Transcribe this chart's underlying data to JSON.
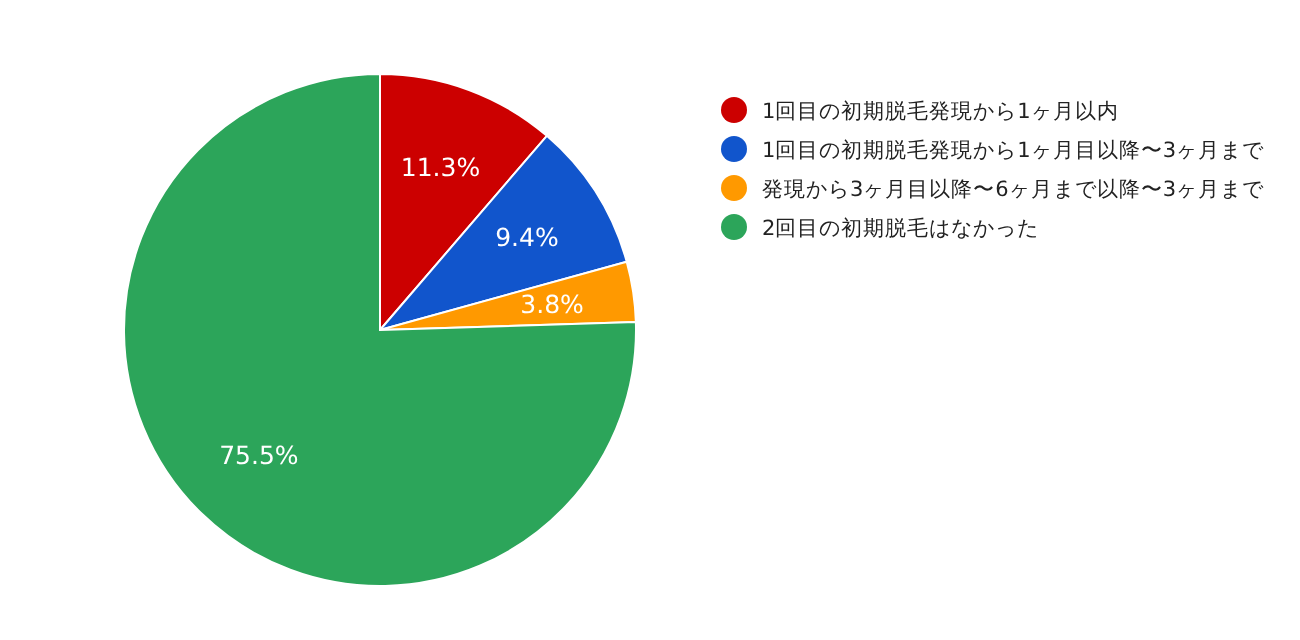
{
  "chart_data": {
    "type": "pie",
    "categories": [
      "1回目の初期脱毛発現から1ヶ月以内",
      "1回目の初期脱毛発現から1ヶ月目以降〜3ヶ月まで",
      "発現から3ヶ月目以降〜6ヶ月まで以降〜3ヶ月まで",
      "2回目の初期脱毛はなかった"
    ],
    "values": [
      11.3,
      9.4,
      3.8,
      75.5
    ],
    "colors": [
      "#cc0000",
      "#1155cc",
      "#ff9900",
      "#2ca55a"
    ],
    "value_labels": [
      "11.3%",
      "9.4%",
      "3.8%",
      "75.5%"
    ],
    "legend": "right"
  }
}
